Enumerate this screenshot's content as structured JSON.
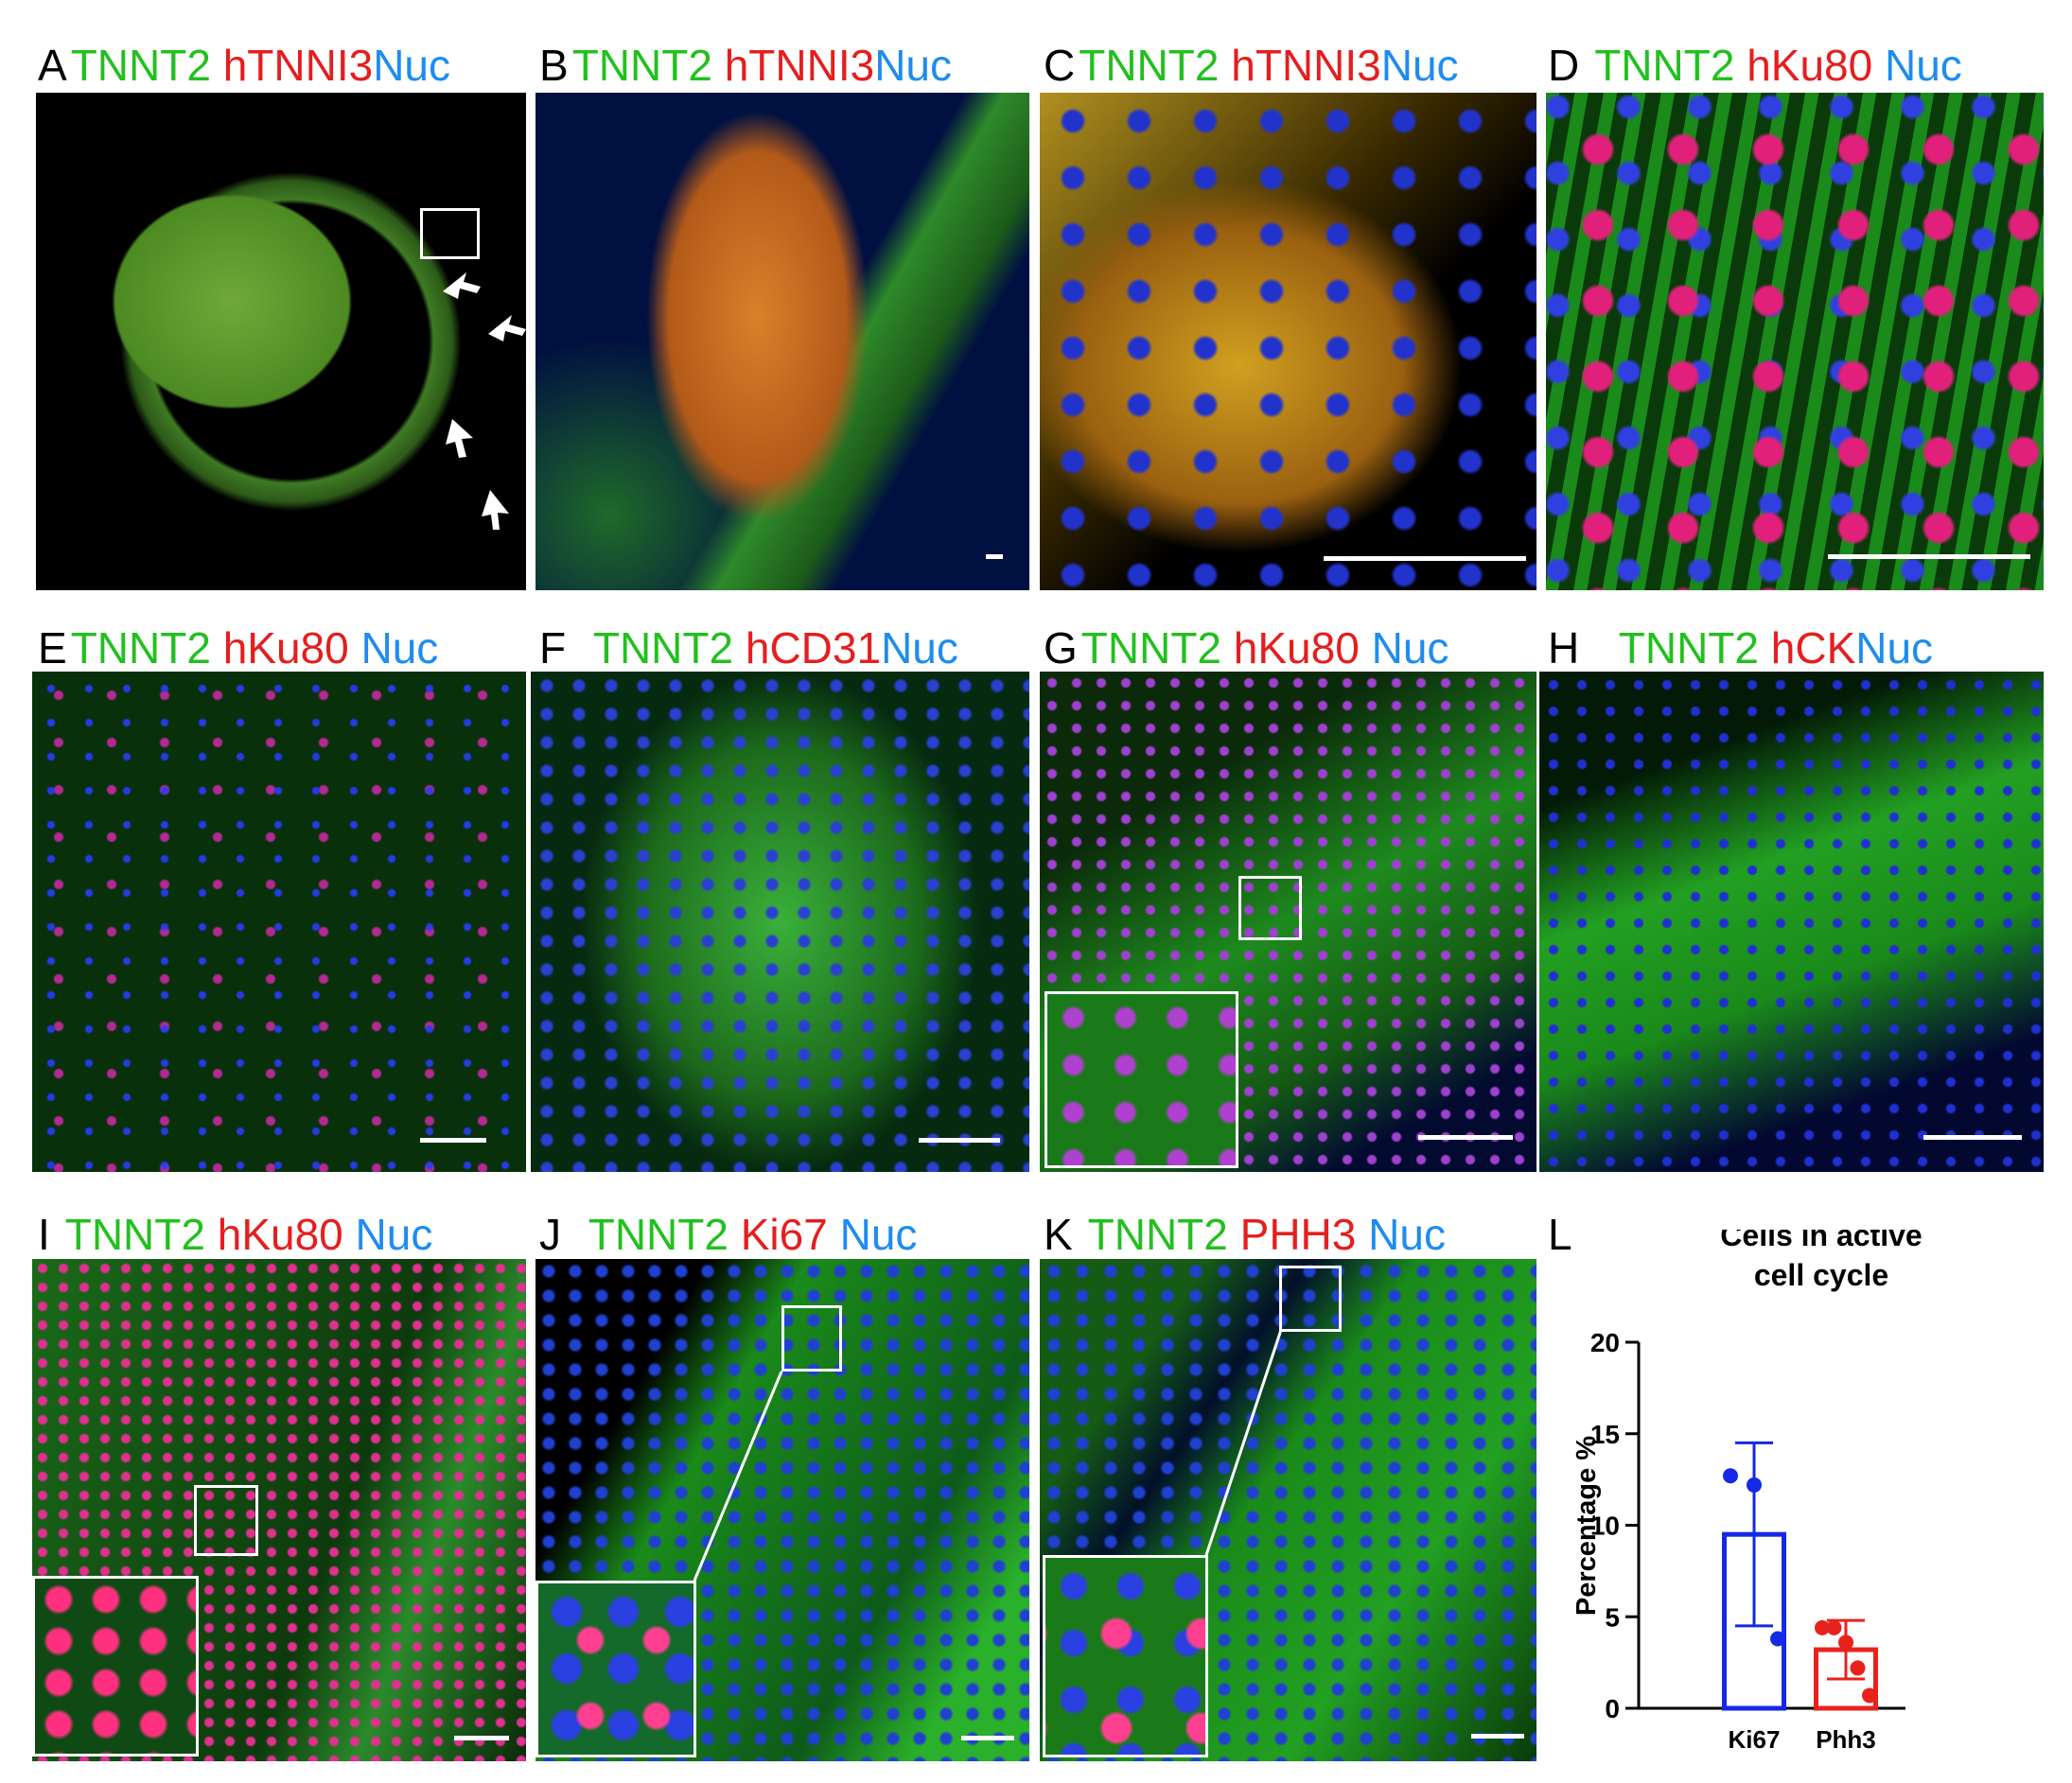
{
  "panels": [
    {
      "label": "A",
      "stains": [
        "TNNT2",
        "hTNNI3",
        "Nuc"
      ]
    },
    {
      "label": "B",
      "stains": [
        "TNNT2",
        "hTNNI3",
        "Nuc"
      ]
    },
    {
      "label": "C",
      "stains": [
        "TNNT2",
        "hTNNI3",
        "Nuc"
      ]
    },
    {
      "label": "D",
      "stains": [
        "TNNT2",
        "hKu80",
        "Nuc"
      ]
    },
    {
      "label": "E",
      "stains": [
        "TNNT2",
        "hKu80",
        "Nuc"
      ]
    },
    {
      "label": "F",
      "stains": [
        "TNNT2",
        "hCD31",
        "Nuc"
      ]
    },
    {
      "label": "G",
      "stains": [
        "TNNT2",
        "hKu80",
        "Nuc"
      ]
    },
    {
      "label": "H",
      "stains": [
        "TNNT2",
        "hCK",
        "Nuc"
      ]
    },
    {
      "label": "I",
      "stains": [
        "TNNT2",
        "hKu80",
        "Nuc"
      ]
    },
    {
      "label": "J",
      "stains": [
        "TNNT2",
        "Ki67",
        "Nuc"
      ]
    },
    {
      "label": "K",
      "stains": [
        "TNNT2",
        "PHH3",
        "Nuc"
      ]
    },
    {
      "label": "L"
    }
  ],
  "chart_data": {
    "type": "bar",
    "title": "Cells in active cell cycle",
    "ylabel": "Percentage %",
    "categories": [
      "Ki67",
      "Phh3"
    ],
    "values": [
      9.5,
      3.2
    ],
    "errors": [
      5,
      1.6
    ],
    "points": [
      [
        12.7,
        12.2,
        3.8
      ],
      [
        4.4,
        4.4,
        3.6,
        2.2,
        0.7
      ]
    ],
    "colors": [
      "#1428e6",
      "#e8231c"
    ],
    "ylim": [
      0,
      20
    ],
    "yticks": [
      0,
      5,
      10,
      15,
      20
    ]
  }
}
